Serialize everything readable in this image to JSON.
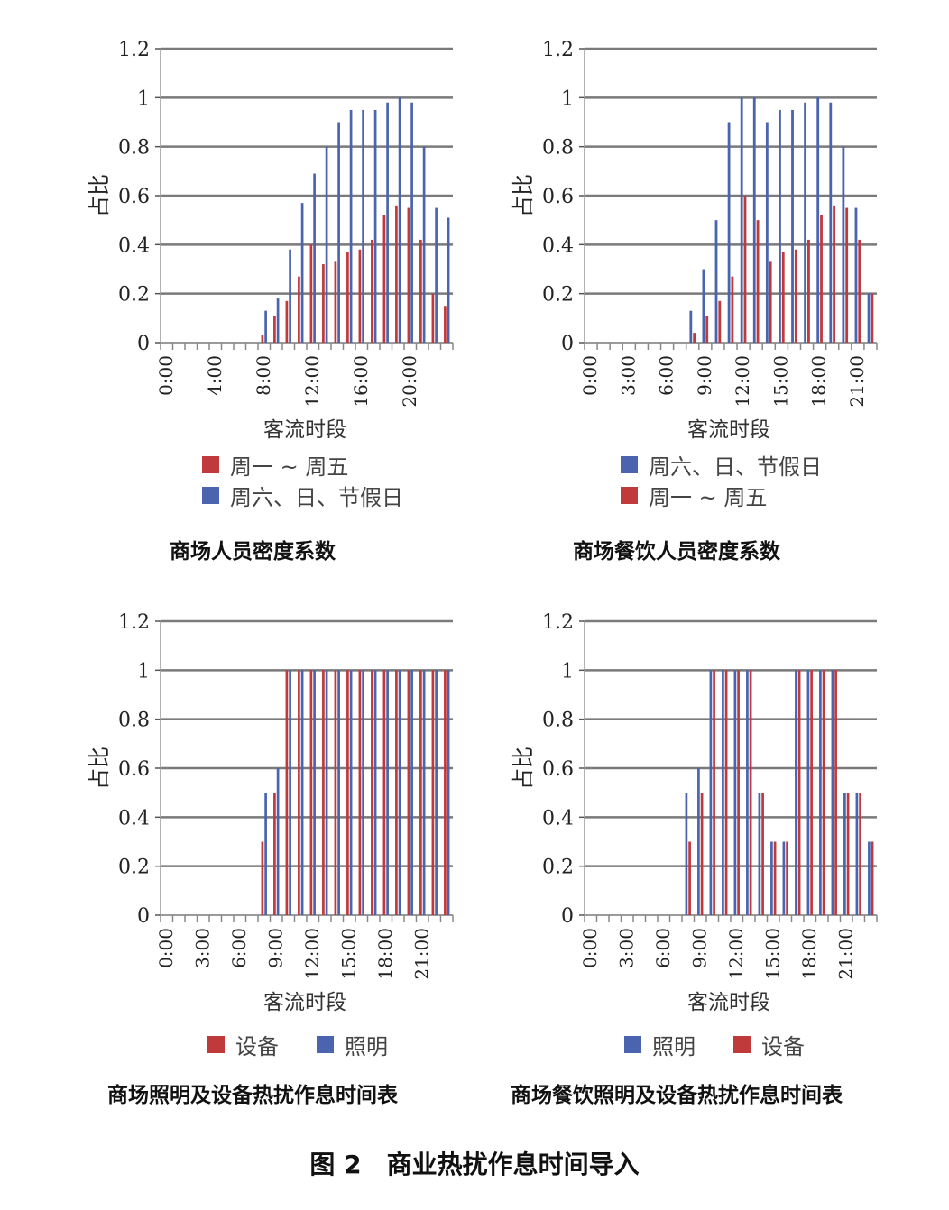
{
  "figure_caption": "图 2　商业热扰作息时间导入",
  "chart_data": [
    {
      "type": "bar",
      "title": "商场人员密度系数",
      "xlabel": "客流时段",
      "ylabel": "占比",
      "ylim": [
        0,
        1.2
      ],
      "yticks": [
        "0",
        "0.2",
        "0.4",
        "0.6",
        "0.8",
        "1",
        "1.2"
      ],
      "xtick_labels": [
        "0:00",
        "4:00",
        "8:00",
        "12:00",
        "16:00",
        "20:00"
      ],
      "xtick_hours": [
        0,
        4,
        8,
        12,
        16,
        20
      ],
      "hours": 24,
      "legend_layout": "stacked",
      "series": [
        {
          "name": "周一 ~ 周五",
          "color": "#c0393b",
          "values": [
            0,
            0,
            0,
            0,
            0,
            0,
            0,
            0,
            0.03,
            0.11,
            0.17,
            0.27,
            0.4,
            0.32,
            0.33,
            0.37,
            0.38,
            0.42,
            0.52,
            0.56,
            0.55,
            0.42,
            0.2,
            0.15
          ]
        },
        {
          "name": "周六、日、节假日",
          "color": "#4a64b0",
          "values": [
            0,
            0,
            0,
            0,
            0,
            0,
            0,
            0,
            0.13,
            0.18,
            0.38,
            0.57,
            0.69,
            0.8,
            0.9,
            0.95,
            0.95,
            0.95,
            0.98,
            1.0,
            0.98,
            0.8,
            0.55,
            0.51
          ]
        }
      ],
      "draw_order": [
        1,
        0
      ],
      "legend_order": [
        0,
        1
      ]
    },
    {
      "type": "bar",
      "title": "商场餐饮人员密度系数",
      "xlabel": "客流时段",
      "ylabel": "占比",
      "ylim": [
        0,
        1.2
      ],
      "yticks": [
        "0",
        "0.2",
        "0.4",
        "0.6",
        "0.8",
        "1",
        "1.2"
      ],
      "xtick_labels": [
        "0:00",
        "3:00",
        "6:00",
        "9:00",
        "12:00",
        "15:00",
        "18:00",
        "21:00"
      ],
      "xtick_hours": [
        0,
        3,
        6,
        9,
        12,
        15,
        18,
        21
      ],
      "hours": 23,
      "legend_layout": "stacked",
      "series": [
        {
          "name": "周六、日、节假日",
          "color": "#4a64b0",
          "values": [
            0,
            0,
            0,
            0,
            0,
            0,
            0,
            0,
            0.13,
            0.3,
            0.5,
            0.9,
            1.0,
            1.0,
            0.9,
            0.95,
            0.95,
            0.98,
            1.0,
            0.98,
            0.8,
            0.55,
            0.2
          ]
        },
        {
          "name": "周一 ~ 周五",
          "color": "#c0393b",
          "values": [
            0,
            0,
            0,
            0,
            0,
            0,
            0,
            0,
            0.04,
            0.11,
            0.17,
            0.27,
            0.6,
            0.5,
            0.33,
            0.37,
            0.38,
            0.42,
            0.52,
            0.56,
            0.55,
            0.42,
            0.2
          ]
        }
      ],
      "draw_order": [
        0,
        1
      ],
      "legend_order": [
        0,
        1
      ]
    },
    {
      "type": "bar",
      "title": "商场照明及设备热扰作息时间表",
      "xlabel": "客流时段",
      "ylabel": "占比",
      "ylim": [
        0,
        1.2
      ],
      "yticks": [
        "0",
        "0.2",
        "0.4",
        "0.6",
        "0.8",
        "1",
        "1.2"
      ],
      "xtick_labels": [
        "0:00",
        "3:00",
        "6:00",
        "9:00",
        "12:00",
        "15:00",
        "18:00",
        "21:00"
      ],
      "xtick_hours": [
        0,
        3,
        6,
        9,
        12,
        15,
        18,
        21
      ],
      "hours": 24,
      "legend_layout": "inline",
      "series": [
        {
          "name": "设备",
          "color": "#c0393b",
          "values": [
            0,
            0,
            0,
            0,
            0,
            0,
            0,
            0,
            0.3,
            0.5,
            1,
            1,
            1,
            1,
            1,
            1,
            1,
            1,
            1,
            1,
            1,
            1,
            1,
            1
          ]
        },
        {
          "name": "照明",
          "color": "#4a64b0",
          "values": [
            0,
            0,
            0,
            0,
            0,
            0,
            0,
            0,
            0.5,
            0.6,
            1,
            1,
            1,
            1,
            1,
            1,
            1,
            1,
            1,
            1,
            1,
            1,
            1,
            1
          ]
        }
      ],
      "draw_order": [
        1,
        0
      ],
      "legend_order": [
        0,
        1
      ]
    },
    {
      "type": "bar",
      "title": "商场餐饮照明及设备热扰作息时间表",
      "xlabel": "客流时段",
      "ylabel": "占比",
      "ylim": [
        0,
        1.2
      ],
      "yticks": [
        "0",
        "0.2",
        "0.4",
        "0.6",
        "0.8",
        "1",
        "1.2"
      ],
      "xtick_labels": [
        "0:00",
        "3:00",
        "6:00",
        "9:00",
        "12:00",
        "15:00",
        "18:00",
        "21:00"
      ],
      "xtick_hours": [
        0,
        3,
        6,
        9,
        12,
        15,
        18,
        21
      ],
      "hours": 24,
      "legend_layout": "inline",
      "series": [
        {
          "name": "照明",
          "color": "#4a64b0",
          "values": [
            0,
            0,
            0,
            0,
            0,
            0,
            0,
            0,
            0.5,
            0.6,
            1,
            1,
            1,
            1,
            0.5,
            0.3,
            0.3,
            1,
            1,
            1,
            1,
            0.5,
            0.5,
            0.3
          ]
        },
        {
          "name": "设备",
          "color": "#c0393b",
          "values": [
            0,
            0,
            0,
            0,
            0,
            0,
            0,
            0,
            0.3,
            0.5,
            1,
            1,
            1,
            1,
            0.5,
            0.3,
            0.3,
            1,
            1,
            1,
            1,
            0.5,
            0.5,
            0.3
          ]
        }
      ],
      "draw_order": [
        0,
        1
      ],
      "legend_order": [
        0,
        1
      ]
    }
  ]
}
